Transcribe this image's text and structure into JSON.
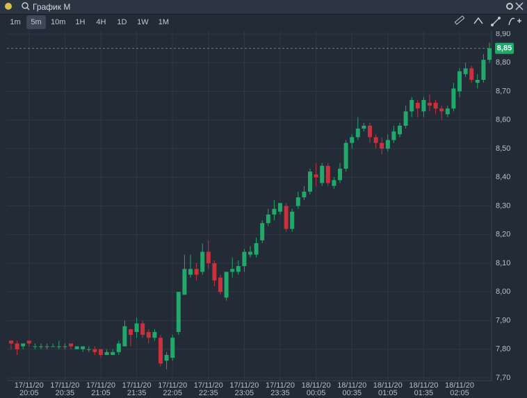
{
  "ui": {
    "symbol": "График М",
    "timeframes": [
      "1m",
      "5m",
      "10m",
      "1H",
      "4H",
      "1D",
      "1W",
      "1M"
    ],
    "selected_timeframe": 1
  },
  "chart_data": {
    "type": "candlestick",
    "categories": [
      null,
      null,
      null,
      "17/11/20 20:05",
      null,
      null,
      null,
      null,
      null,
      "17/11/20 20:35",
      null,
      null,
      null,
      null,
      null,
      "17/11/20 21:05",
      null,
      null,
      null,
      null,
      null,
      "17/11/20 21:35",
      null,
      null,
      null,
      null,
      null,
      "17/11/20 22:05",
      null,
      null,
      null,
      null,
      null,
      "17/11/20 22:35",
      null,
      null,
      null,
      null,
      null,
      "17/11/20 23:05",
      null,
      null,
      null,
      null,
      null,
      "17/11/20 23:35",
      null,
      null,
      null,
      null,
      null,
      "18/11/20 00:05",
      null,
      null,
      null,
      null,
      null,
      "18/11/20 00:35",
      null,
      null,
      null,
      null,
      null,
      "18/11/20 01:05",
      null,
      null,
      null,
      null,
      null,
      "18/11/20 01:35",
      null,
      null,
      null,
      null,
      null,
      "18/11/20 02:05",
      null,
      null,
      null,
      null,
      null
    ],
    "open": [
      7.83,
      7.82,
      7.81,
      7.83,
      7.81,
      7.81,
      7.81,
      7.81,
      7.81,
      7.81,
      7.82,
      7.8,
      7.8,
      7.8,
      7.8,
      7.8,
      7.78,
      7.78,
      7.79,
      7.81,
      7.87,
      7.86,
      7.89,
      7.86,
      7.84,
      7.84,
      7.76,
      7.77,
      7.86,
      7.99,
      8.06,
      8.08,
      8.07,
      8.14,
      8.1,
      8.05,
      7.98,
      8.07,
      8.07,
      8.09,
      8.13,
      8.13,
      8.18,
      8.24,
      8.27,
      8.28,
      8.3,
      8.22,
      8.3,
      8.33,
      8.35,
      8.41,
      8.38,
      8.44,
      8.37,
      8.39,
      8.43,
      8.52,
      8.54,
      8.57,
      8.58,
      8.54,
      8.52,
      8.5,
      8.53,
      8.55,
      8.58,
      8.63,
      8.66,
      8.63,
      8.66,
      8.66,
      8.64,
      8.62,
      8.64,
      8.7,
      8.76,
      8.78,
      8.73,
      8.74,
      8.81
    ],
    "high": [
      7.83,
      7.83,
      7.82,
      7.83,
      7.82,
      7.82,
      7.82,
      7.82,
      7.83,
      7.82,
      7.82,
      7.81,
      7.81,
      7.81,
      7.81,
      7.8,
      7.8,
      7.8,
      7.83,
      7.9,
      7.87,
      7.91,
      7.9,
      7.87,
      7.87,
      7.85,
      7.79,
      7.85,
      8.0,
      8.13,
      8.13,
      8.1,
      8.17,
      8.18,
      8.11,
      8.06,
      8.07,
      8.12,
      8.11,
      8.15,
      8.16,
      8.19,
      8.25,
      8.29,
      8.32,
      8.31,
      8.31,
      8.29,
      8.35,
      8.37,
      8.43,
      8.45,
      8.45,
      8.45,
      8.4,
      8.45,
      8.53,
      8.55,
      8.61,
      8.59,
      8.59,
      8.55,
      8.54,
      8.55,
      8.58,
      8.59,
      8.65,
      8.68,
      8.67,
      8.68,
      8.69,
      8.67,
      8.65,
      8.65,
      8.73,
      8.78,
      8.8,
      8.79,
      8.76,
      8.83,
      8.87
    ],
    "low": [
      7.8,
      7.78,
      7.8,
      7.81,
      7.8,
      7.8,
      7.8,
      7.81,
      7.8,
      7.8,
      7.8,
      7.8,
      7.79,
      7.79,
      7.78,
      7.77,
      7.78,
      7.78,
      7.78,
      7.81,
      7.81,
      7.84,
      7.84,
      7.82,
      7.83,
      7.74,
      7.73,
      7.76,
      7.85,
      7.99,
      8.05,
      8.04,
      8.06,
      8.08,
      8.02,
      7.99,
      7.97,
      8.05,
      8.06,
      8.07,
      8.12,
      8.12,
      8.17,
      8.23,
      8.25,
      8.27,
      8.21,
      8.21,
      8.29,
      8.32,
      8.34,
      8.37,
      8.37,
      8.37,
      8.36,
      8.38,
      8.42,
      8.5,
      8.53,
      8.56,
      8.52,
      8.5,
      8.48,
      8.49,
      8.52,
      8.54,
      8.57,
      8.61,
      8.61,
      8.61,
      8.63,
      8.62,
      8.6,
      8.61,
      8.63,
      8.68,
      8.75,
      8.73,
      8.71,
      8.73,
      8.8
    ],
    "close": [
      7.82,
      7.8,
      7.82,
      7.82,
      7.81,
      7.81,
      7.81,
      7.81,
      7.81,
      7.81,
      7.81,
      7.81,
      7.81,
      7.8,
      7.79,
      7.78,
      7.79,
      7.79,
      7.82,
      7.88,
      7.85,
      7.89,
      7.85,
      7.84,
      7.86,
      7.75,
      7.78,
      7.84,
      8.0,
      8.08,
      8.08,
      8.06,
      8.14,
      8.1,
      8.04,
      8.0,
      8.07,
      8.08,
      8.09,
      8.14,
      8.14,
      8.17,
      8.24,
      8.27,
      8.29,
      8.31,
      8.22,
      8.28,
      8.33,
      8.35,
      8.42,
      8.4,
      8.44,
      8.38,
      8.39,
      8.43,
      8.52,
      8.54,
      8.57,
      8.58,
      8.54,
      8.52,
      8.5,
      8.53,
      8.56,
      8.58,
      8.63,
      8.67,
      8.64,
      8.67,
      8.65,
      8.64,
      8.63,
      8.64,
      8.71,
      8.77,
      8.78,
      8.74,
      8.74,
      8.81,
      8.85
    ],
    "up_color": "#22a86b",
    "down_color": "#c8323f",
    "ylim": [
      7.7,
      8.9
    ],
    "yticks": [
      {
        "value": 7.7,
        "label": "7,70"
      },
      {
        "value": 7.8,
        "label": "7,80"
      },
      {
        "value": 7.9,
        "label": "7,90"
      },
      {
        "value": 8.0,
        "label": "8,00"
      },
      {
        "value": 8.1,
        "label": "8,10"
      },
      {
        "value": 8.2,
        "label": "8,20"
      },
      {
        "value": 8.3,
        "label": "8,30"
      },
      {
        "value": 8.4,
        "label": "8,40"
      },
      {
        "value": 8.5,
        "label": "8,50"
      },
      {
        "value": 8.6,
        "label": "8,60"
      },
      {
        "value": 8.7,
        "label": "8,70"
      },
      {
        "value": 8.8,
        "label": "8,80"
      },
      {
        "value": 8.9,
        "label": "8,90"
      }
    ],
    "last_price": {
      "value": 8.85,
      "label": "8,85"
    },
    "grid": true
  }
}
